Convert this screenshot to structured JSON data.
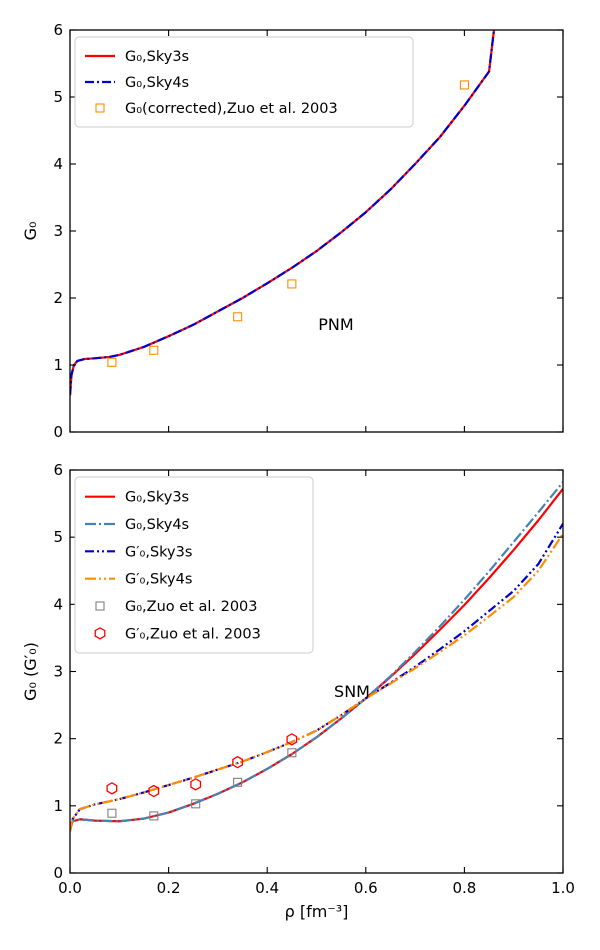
{
  "chart_data": [
    {
      "type": "line",
      "xlabel": "",
      "ylabel": "G₀",
      "xlim": [
        0.0,
        1.0
      ],
      "ylim": [
        0,
        6
      ],
      "xticks": [
        0.0,
        0.2,
        0.4,
        0.6,
        0.8,
        1.0
      ],
      "xtick_labels": [
        "",
        "",
        "",
        "",
        "",
        ""
      ],
      "yticks": [
        0,
        1,
        2,
        3,
        4,
        5,
        6
      ],
      "ytick_labels": [
        "0",
        "1",
        "2",
        "3",
        "4",
        "5",
        "6"
      ],
      "annotation": "PNM",
      "legend_position": "top-left",
      "series": [
        {
          "name": "G₀,Sky3s",
          "kind": "line",
          "style": "solid",
          "color": "#ff0000",
          "x": [
            0.0,
            0.003,
            0.008,
            0.015,
            0.03,
            0.05,
            0.08,
            0.1,
            0.15,
            0.2,
            0.25,
            0.3,
            0.35,
            0.4,
            0.45,
            0.5,
            0.55,
            0.6,
            0.65,
            0.7,
            0.75,
            0.8,
            0.85,
            0.86
          ],
          "y": [
            0.55,
            0.85,
            1.0,
            1.06,
            1.09,
            1.1,
            1.12,
            1.15,
            1.27,
            1.43,
            1.6,
            1.8,
            2.0,
            2.22,
            2.45,
            2.7,
            2.98,
            3.28,
            3.62,
            4.0,
            4.4,
            4.87,
            5.38,
            6.0
          ]
        },
        {
          "name": "G₀,Sky4s",
          "kind": "line",
          "style": "dashdot",
          "color": "#0000cc",
          "x": [
            0.0,
            0.003,
            0.008,
            0.015,
            0.03,
            0.05,
            0.08,
            0.1,
            0.15,
            0.2,
            0.25,
            0.3,
            0.35,
            0.4,
            0.45,
            0.5,
            0.55,
            0.6,
            0.65,
            0.7,
            0.75,
            0.8,
            0.85,
            0.86
          ],
          "y": [
            0.55,
            0.85,
            1.0,
            1.06,
            1.09,
            1.1,
            1.12,
            1.15,
            1.27,
            1.43,
            1.6,
            1.8,
            2.0,
            2.22,
            2.45,
            2.7,
            2.98,
            3.28,
            3.62,
            4.0,
            4.4,
            4.87,
            5.38,
            6.0
          ]
        },
        {
          "name": "G₀(corrected),Zuo et al. 2003",
          "kind": "marker",
          "marker": "square",
          "color": "#ff8c00",
          "x": [
            0.085,
            0.17,
            0.34,
            0.45,
            0.8
          ],
          "y": [
            1.04,
            1.22,
            1.72,
            2.21,
            5.18
          ]
        }
      ]
    },
    {
      "type": "line",
      "xlabel": "ρ [fm⁻³]",
      "ylabel": "G₀ (G′₀)",
      "xlim": [
        0.0,
        1.0
      ],
      "ylim": [
        0,
        6
      ],
      "xticks": [
        0.0,
        0.2,
        0.4,
        0.6,
        0.8,
        1.0
      ],
      "xtick_labels": [
        "0.0",
        "0.2",
        "0.4",
        "0.6",
        "0.8",
        "1.0"
      ],
      "yticks": [
        0,
        1,
        2,
        3,
        4,
        5,
        6
      ],
      "ytick_labels": [
        "0",
        "1",
        "2",
        "3",
        "4",
        "5",
        "6"
      ],
      "annotation": "SNM",
      "legend_position": "top-left",
      "series": [
        {
          "name": "G₀,Sky3s",
          "kind": "line",
          "style": "solid",
          "color": "#ff0000",
          "x": [
            0.0,
            0.005,
            0.02,
            0.05,
            0.1,
            0.15,
            0.2,
            0.25,
            0.3,
            0.35,
            0.4,
            0.45,
            0.5,
            0.55,
            0.6,
            0.65,
            0.7,
            0.75,
            0.8,
            0.85,
            0.9,
            0.95,
            1.0
          ],
          "y": [
            0.65,
            0.77,
            0.8,
            0.78,
            0.77,
            0.81,
            0.9,
            1.03,
            1.18,
            1.35,
            1.55,
            1.77,
            2.02,
            2.3,
            2.6,
            2.92,
            3.26,
            3.62,
            3.99,
            4.39,
            4.81,
            5.25,
            5.72
          ]
        },
        {
          "name": "G₀,Sky4s",
          "kind": "line",
          "style": "dashdot-long",
          "color": "#4682b4",
          "x": [
            0.0,
            0.005,
            0.02,
            0.05,
            0.1,
            0.15,
            0.2,
            0.25,
            0.3,
            0.35,
            0.4,
            0.45,
            0.5,
            0.55,
            0.6,
            0.65,
            0.7,
            0.75,
            0.8,
            0.85,
            0.9,
            0.95,
            1.0
          ],
          "y": [
            0.65,
            0.77,
            0.8,
            0.78,
            0.77,
            0.81,
            0.9,
            1.03,
            1.18,
            1.35,
            1.55,
            1.77,
            2.02,
            2.3,
            2.6,
            2.93,
            3.29,
            3.67,
            4.07,
            4.49,
            4.93,
            5.37,
            5.82
          ]
        },
        {
          "name": "G′₀,Sky3s",
          "kind": "line",
          "style": "dashdotdot",
          "color": "#0000cc",
          "x": [
            0.0,
            0.005,
            0.02,
            0.05,
            0.1,
            0.15,
            0.2,
            0.25,
            0.3,
            0.35,
            0.4,
            0.45,
            0.5,
            0.55,
            0.6,
            0.65,
            0.7,
            0.75,
            0.8,
            0.85,
            0.9,
            0.95,
            1.0
          ],
          "y": [
            0.62,
            0.8,
            0.95,
            1.02,
            1.1,
            1.2,
            1.31,
            1.42,
            1.54,
            1.66,
            1.8,
            1.95,
            2.12,
            2.35,
            2.6,
            2.83,
            3.07,
            3.33,
            3.6,
            3.9,
            4.2,
            4.6,
            5.2
          ]
        },
        {
          "name": "G′₀,Sky4s",
          "kind": "line",
          "style": "dashdotdot-long",
          "color": "#ff8c00",
          "x": [
            0.0,
            0.005,
            0.02,
            0.05,
            0.1,
            0.15,
            0.2,
            0.25,
            0.3,
            0.35,
            0.4,
            0.45,
            0.5,
            0.55,
            0.6,
            0.65,
            0.7,
            0.75,
            0.8,
            0.85,
            0.9,
            0.95,
            1.0
          ],
          "y": [
            0.62,
            0.8,
            0.95,
            1.02,
            1.1,
            1.2,
            1.31,
            1.42,
            1.54,
            1.66,
            1.8,
            1.95,
            2.12,
            2.35,
            2.6,
            2.82,
            3.05,
            3.29,
            3.54,
            3.82,
            4.11,
            4.5,
            5.05
          ]
        },
        {
          "name": "G₀,Zuo et al. 2003",
          "kind": "marker",
          "marker": "square",
          "color": "#808080",
          "x": [
            0.085,
            0.17,
            0.255,
            0.34,
            0.45
          ],
          "y": [
            0.89,
            0.85,
            1.03,
            1.35,
            1.79
          ]
        },
        {
          "name": "G′₀,Zuo et al. 2003",
          "kind": "marker",
          "marker": "hexagon",
          "color": "#ff0000",
          "x": [
            0.085,
            0.17,
            0.255,
            0.34,
            0.45
          ],
          "y": [
            1.26,
            1.22,
            1.32,
            1.65,
            1.99
          ]
        }
      ]
    }
  ]
}
